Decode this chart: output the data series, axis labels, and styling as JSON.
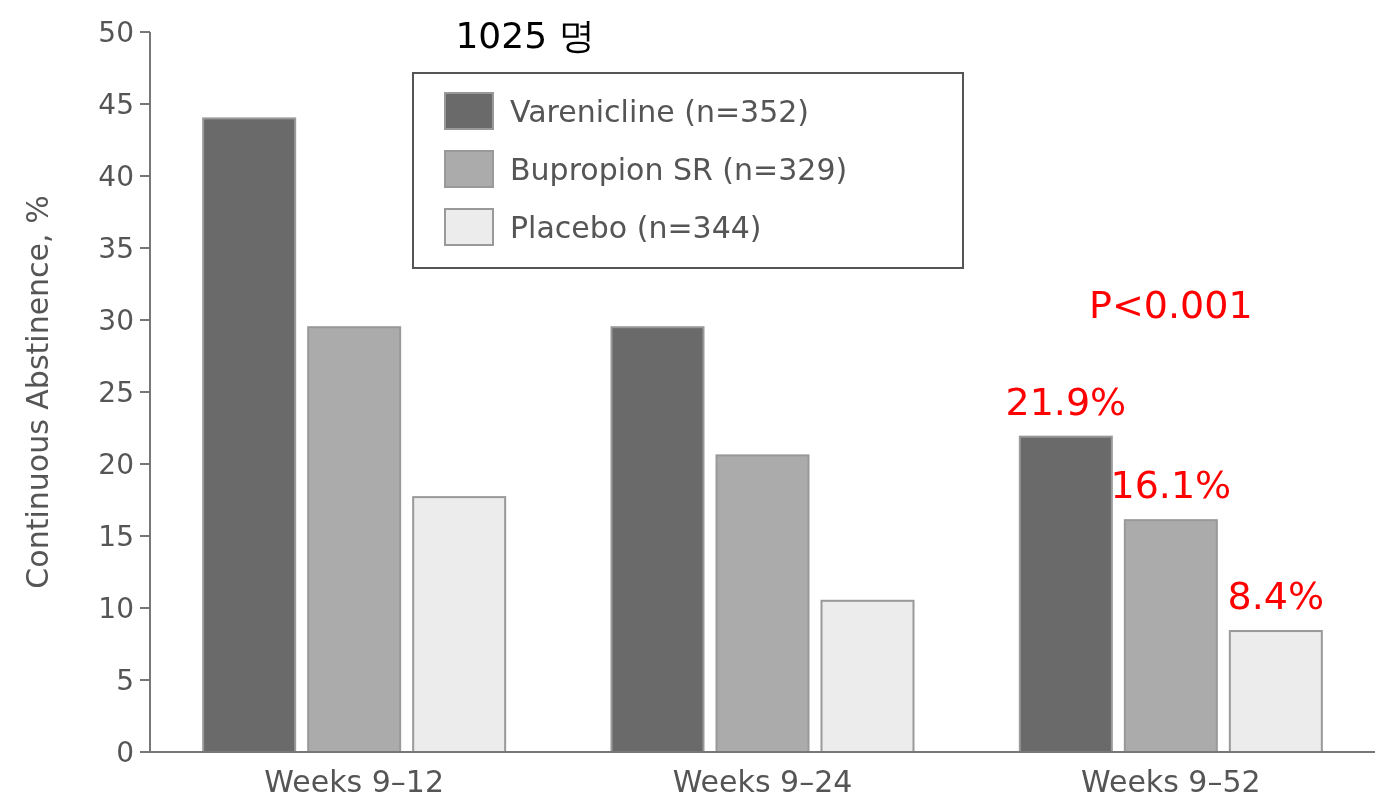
{
  "chart_data": {
    "type": "bar",
    "ylabel": "Continuous Abstinence, %",
    "categories": [
      "Weeks 9–12",
      "Weeks 9–24",
      "Weeks 9–52"
    ],
    "series": [
      {
        "name": "Varenicline (n=352)",
        "color": "#6a6a6a",
        "values": [
          44,
          29.5,
          21.9
        ],
        "value_labels": [
          null,
          null,
          "21.9%"
        ]
      },
      {
        "name": "Bupropion SR (n=329)",
        "color": "#ababab",
        "values": [
          29.5,
          20.6,
          16.1
        ],
        "value_labels": [
          null,
          null,
          "16.1%"
        ]
      },
      {
        "name": "Placebo (n=344)",
        "color": "#ececec",
        "values": [
          17.7,
          10.5,
          8.4
        ],
        "value_labels": [
          null,
          null,
          "8.4%"
        ]
      }
    ],
    "ylim": [
      0,
      50
    ],
    "yticks": [
      0,
      5,
      10,
      15,
      20,
      25,
      30,
      35,
      40,
      45,
      50
    ],
    "legend": "top",
    "grid": false,
    "annotations": [
      "1025 명",
      "P<0.001"
    ]
  }
}
